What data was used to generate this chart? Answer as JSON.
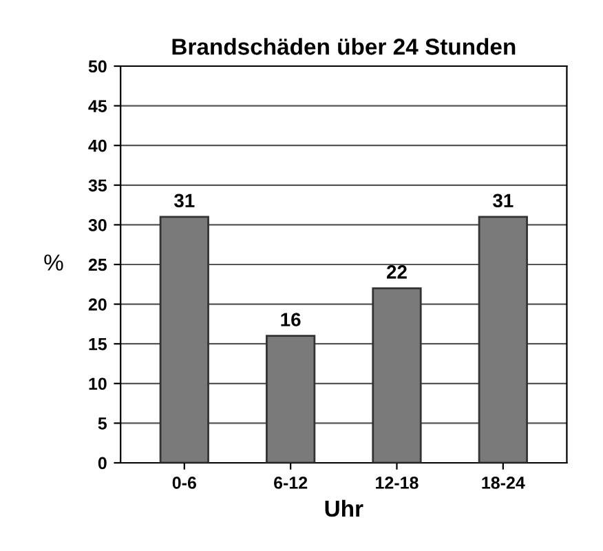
{
  "chart_data": {
    "type": "bar",
    "title": "Brandschäden über 24 Stunden",
    "xlabel": "Uhr",
    "ylabel": "%",
    "categories": [
      "0-6",
      "6-12",
      "12-18",
      "18-24"
    ],
    "values": [
      31,
      16,
      22,
      31
    ],
    "color": "#7a7a7a",
    "ylim": [
      0,
      50
    ],
    "yticks": [
      0,
      5,
      10,
      15,
      20,
      25,
      30,
      35,
      40,
      45,
      50
    ],
    "grid": "y",
    "data_labels": true
  }
}
